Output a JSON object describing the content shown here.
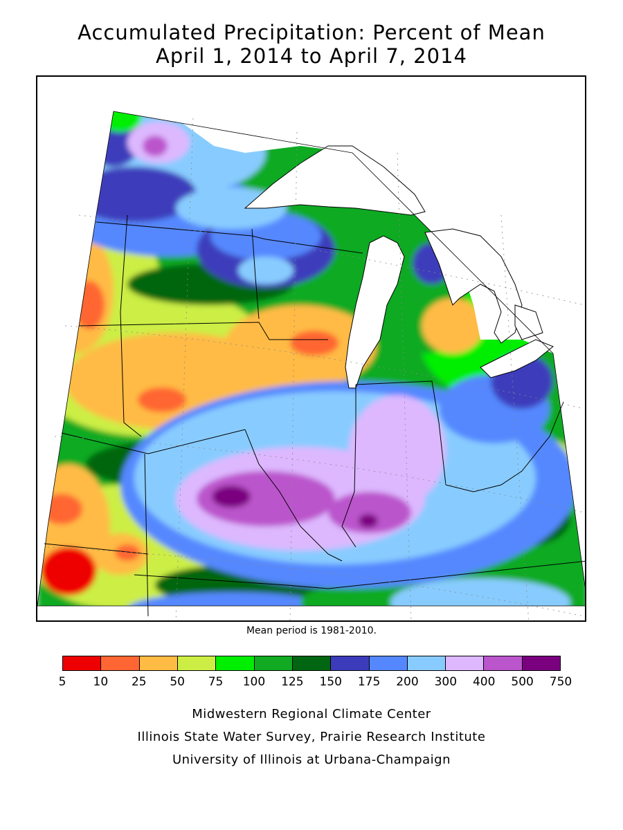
{
  "title": {
    "line1": "Accumulated Precipitation: Percent of Mean",
    "line2": "April 1, 2014 to April 7, 2014"
  },
  "map": {
    "region": "Midwestern United States",
    "variable": "Accumulated precipitation, percent of mean",
    "mean_note": "Mean period is 1981-2010.",
    "land_fill": "#ffffff",
    "lake_fill": "#ffffff"
  },
  "legend": {
    "ticks": [
      "5",
      "10",
      "25",
      "50",
      "75",
      "100",
      "125",
      "150",
      "175",
      "200",
      "300",
      "400",
      "500",
      "750"
    ],
    "colors": [
      "#ee0000",
      "#ff6633",
      "#ffbb44",
      "#ccee44",
      "#00ee00",
      "#11aa22",
      "#006611",
      "#3c3cbb",
      "#5588ff",
      "#88ccff",
      "#ddb8ff",
      "#bb55cc",
      "#7a0080"
    ]
  },
  "credits": {
    "line1": "Midwestern Regional Climate Center",
    "line2": "Illinois State Water Survey, Prairie Research Institute",
    "line3": "University of Illinois at Urbana-Champaign"
  }
}
